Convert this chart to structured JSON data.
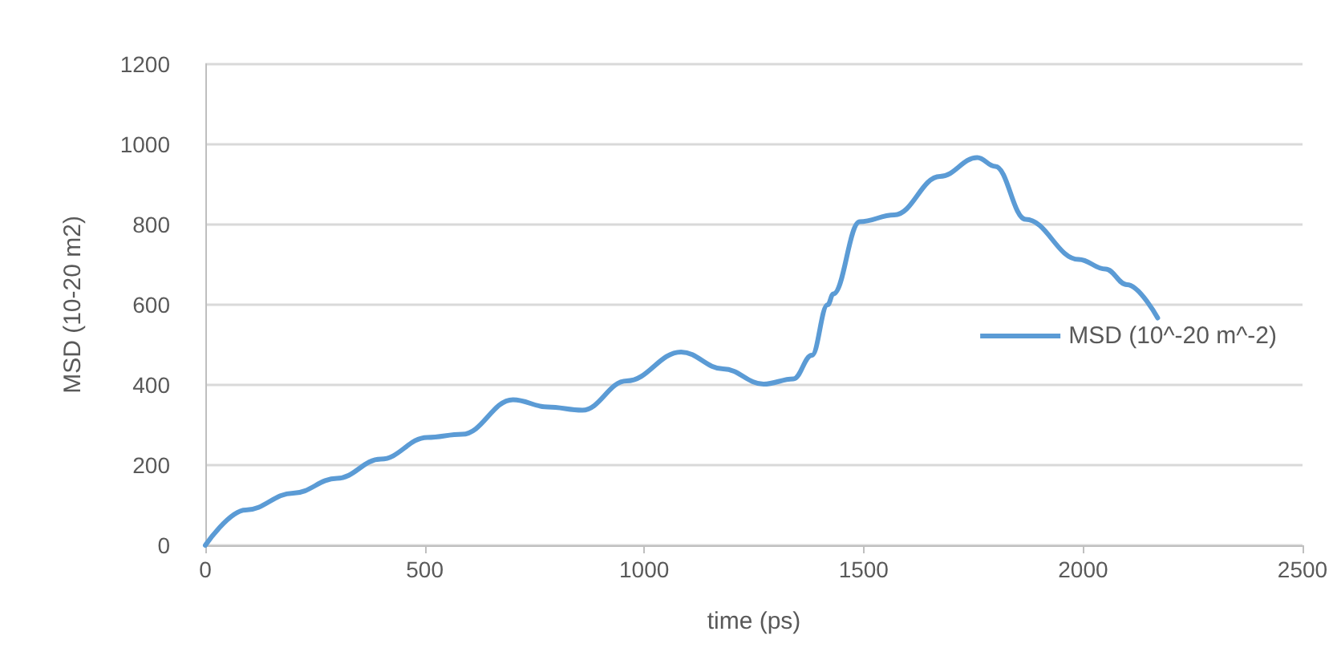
{
  "chart_data": {
    "type": "line",
    "xlabel": "time (ps)",
    "ylabel": "MSD (10-20 m2)",
    "xlim": [
      0,
      2500
    ],
    "xticks": [
      0,
      500,
      1000,
      1500,
      2000,
      2500
    ],
    "ylim": [
      0,
      1200
    ],
    "yticks": [
      0,
      200,
      400,
      600,
      800,
      1000,
      1200
    ],
    "grid": "y",
    "legend": "right",
    "marker": "none",
    "line_style": "solid",
    "series": [
      {
        "name": "MSD (10^-20 m^-2)",
        "color": "#5b9bd5",
        "x": [
          0,
          92,
          200,
          300,
          400,
          506,
          585,
          701,
          780,
          859,
          960,
          1084,
          1180,
          1272,
          1340,
          1382,
          1418,
          1431,
          1491,
          1570,
          1674,
          1759,
          1800,
          1869,
          1990,
          2051,
          2100,
          2170
        ],
        "values": [
          0,
          88,
          130,
          167,
          215,
          269,
          277,
          363,
          345,
          337,
          410,
          482,
          440,
          402,
          415,
          474,
          600,
          627,
          807,
          824,
          920,
          967,
          945,
          813,
          713,
          689,
          650,
          567
        ]
      }
    ]
  }
}
